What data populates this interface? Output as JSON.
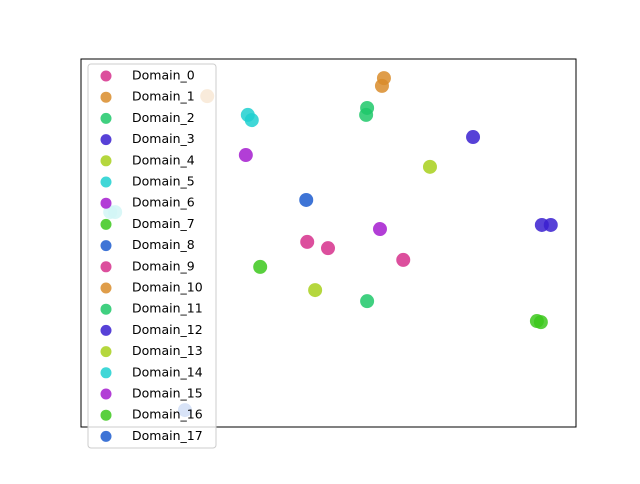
{
  "chart_data": {
    "type": "scatter",
    "xlim": [
      0,
      100
    ],
    "ylim": [
      0,
      100
    ],
    "legend": "upper left",
    "series": [
      {
        "name": "Domain_0",
        "color": "#d6308c",
        "x": [
          45.7,
          49.9
        ],
        "y": [
          50.3,
          48.6
        ]
      },
      {
        "name": "Domain_1",
        "color": "#d98c2a",
        "x": [
          61.2,
          60.8
        ],
        "y": [
          94.8,
          92.7
        ]
      },
      {
        "name": "Domain_2",
        "color": "#1ec86a",
        "x": [
          57.8,
          57.6
        ],
        "y": [
          86.7,
          84.8
        ]
      },
      {
        "name": "Domain_3",
        "color": "#3a20d0",
        "x": [
          79.2
        ],
        "y": [
          78.8
        ]
      },
      {
        "name": "Domain_4",
        "color": "#a8d01c",
        "x": [
          70.5
        ],
        "y": [
          70.7
        ]
      },
      {
        "name": "Domain_5",
        "color": "#1ed0d0",
        "x": [
          33.7,
          34.5
        ],
        "y": [
          84.8,
          83.4
        ]
      },
      {
        "name": "Domain_6",
        "color": "#a51ccf",
        "x": [
          33.3
        ],
        "y": [
          73.9
        ]
      },
      {
        "name": "Domain_7",
        "color": "#3cc81c",
        "x": [
          36.2
        ],
        "y": [
          43.5
        ]
      },
      {
        "name": "Domain_8",
        "color": "#1c5ccf",
        "x": [
          45.5
        ],
        "y": [
          61.7
        ]
      },
      {
        "name": "Domain_9",
        "color": "#d6308c",
        "x": [
          65.1
        ],
        "y": [
          45.4
        ]
      },
      {
        "name": "Domain_10",
        "color": "#d98c2a",
        "x": [
          25.5
        ],
        "y": [
          89.9
        ]
      },
      {
        "name": "Domain_11",
        "color": "#1ec86a",
        "x": [
          57.8
        ],
        "y": [
          34.2
        ]
      },
      {
        "name": "Domain_12",
        "color": "#3a20d0",
        "x": [
          93.1,
          94.9
        ],
        "y": [
          54.9,
          54.9
        ]
      },
      {
        "name": "Domain_13",
        "color": "#a8d01c",
        "x": [
          47.3
        ],
        "y": [
          37.2
        ]
      },
      {
        "name": "Domain_14",
        "color": "#1ed0d0",
        "x": [
          5.9,
          6.9
        ],
        "y": [
          58.4,
          58.4
        ]
      },
      {
        "name": "Domain_15",
        "color": "#a51ccf",
        "x": [
          60.4
        ],
        "y": [
          53.8
        ]
      },
      {
        "name": "Domain_16",
        "color": "#3cc81c",
        "x": [
          92.1,
          92.9
        ],
        "y": [
          28.8,
          28.5
        ]
      },
      {
        "name": "Domain_17",
        "color": "#1c5ccf",
        "x": [
          21.0
        ],
        "y": [
          4.6
        ]
      }
    ]
  }
}
